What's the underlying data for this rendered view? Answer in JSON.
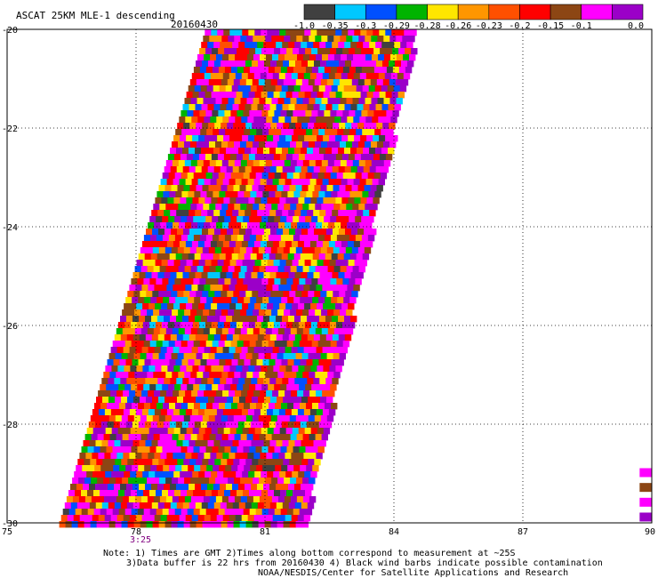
{
  "chart_data": {
    "type": "heatmap",
    "title": "ASCAT 25KM MLE-1 descending",
    "date": "20160430",
    "colorbar": {
      "labels": [
        "-1.0",
        "-0.35",
        "-0.3",
        "-0.29",
        "-0.28",
        "-0.26",
        "-0.23",
        "-0.2",
        "-0.15",
        "-0.1",
        "0.0"
      ],
      "colors": [
        "#404040",
        "#00c8ff",
        "#0050ff",
        "#00b400",
        "#ffe600",
        "#ff9600",
        "#ff5000",
        "#ff0000",
        "#8c4614",
        "#ff00ff",
        "#9b00c8"
      ]
    },
    "x_axis": {
      "min": 75,
      "max": 90,
      "ticks": [
        75,
        78,
        81,
        84,
        87,
        90
      ]
    },
    "y_axis": {
      "min": -30,
      "max": -20,
      "ticks": [
        -20,
        -22,
        -24,
        -26,
        -28,
        -30
      ]
    },
    "time_labels": [
      {
        "lon": 78,
        "label": "3:25"
      }
    ],
    "swath": {
      "top_lat": -20,
      "bottom_lat": -30,
      "top_lon_range": [
        79.6,
        84.5
      ],
      "bottom_lon_range": [
        76.2,
        81.9
      ],
      "description_values": "Gridded MLE values between -1.0 and 0.0 filling the descending swath"
    },
    "edge_cells": [
      {
        "lon": 89.8,
        "lat": -29.0,
        "value": -0.1
      },
      {
        "lon": 89.8,
        "lat": -29.3,
        "value": -0.15
      },
      {
        "lon": 89.8,
        "lat": -29.6,
        "value": -0.1
      },
      {
        "lon": 89.8,
        "lat": -29.9,
        "value": 0.0
      }
    ]
  },
  "notes": [
    "Note: 1) Times are GMT 2)Times along bottom correspond to measurement at ~25S",
    "3)Data buffer is 22 hrs from 20160430 4) Black wind barbs indicate possible contamination",
    "NOAA/NESDIS/Center for Satellite Applications and Research"
  ]
}
